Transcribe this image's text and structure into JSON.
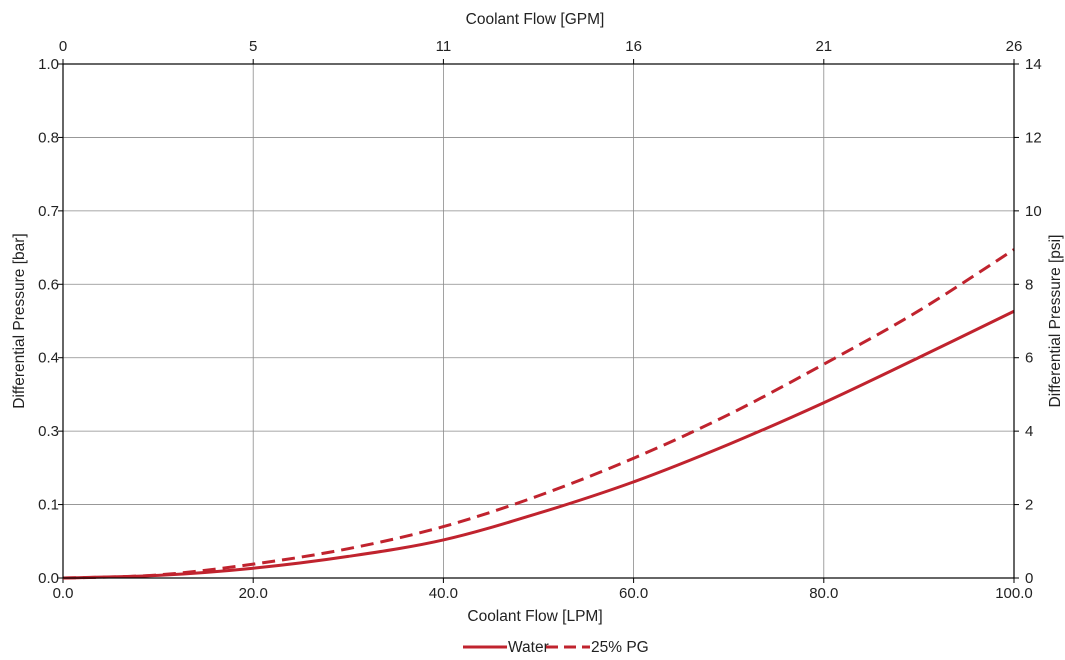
{
  "chart_data": {
    "type": "line",
    "title": "",
    "xlabel": "Coolant Flow [LPM]",
    "x2label": "Coolant Flow [GPM]",
    "ylabel": "Differential Pressure [bar]",
    "y2label": "Differential Pressure [psi]",
    "xlim": [
      0,
      100
    ],
    "ylim": [
      0,
      1.0
    ],
    "y2lim": [
      0,
      14
    ],
    "grid": true,
    "legend_position": "bottom-center",
    "x_tick_values": [
      0,
      20,
      40,
      60,
      80,
      100
    ],
    "x_tick_labels": [
      "0.0",
      "20.0",
      "40.0",
      "60.0",
      "80.0",
      "100.0"
    ],
    "x2_tick_labels": [
      "0",
      "5",
      "11",
      "16",
      "21",
      "26"
    ],
    "y_tick_labels": [
      "0.0",
      "0.1",
      "0.3",
      "0.4",
      "0.6",
      "0.7",
      "0.8",
      "1.0"
    ],
    "y2_tick_labels": [
      "0",
      "2",
      "4",
      "6",
      "8",
      "10",
      "12",
      "14"
    ],
    "series": [
      {
        "name": "Water",
        "style": "solid",
        "color": "#c0232e",
        "x": [
          0,
          10,
          20,
          30,
          40,
          50,
          60,
          70,
          80,
          90,
          100
        ],
        "y": [
          0.0,
          0.005,
          0.019,
          0.042,
          0.074,
          0.126,
          0.187,
          0.26,
          0.341,
          0.429,
          0.519
        ]
      },
      {
        "name": "25% PG",
        "style": "dashed",
        "color": "#c0232e",
        "x": [
          0,
          10,
          20,
          30,
          40,
          50,
          60,
          70,
          80,
          90,
          100
        ],
        "y": [
          0.0,
          0.006,
          0.027,
          0.057,
          0.1,
          0.16,
          0.233,
          0.318,
          0.416,
          0.52,
          0.639
        ]
      }
    ]
  }
}
